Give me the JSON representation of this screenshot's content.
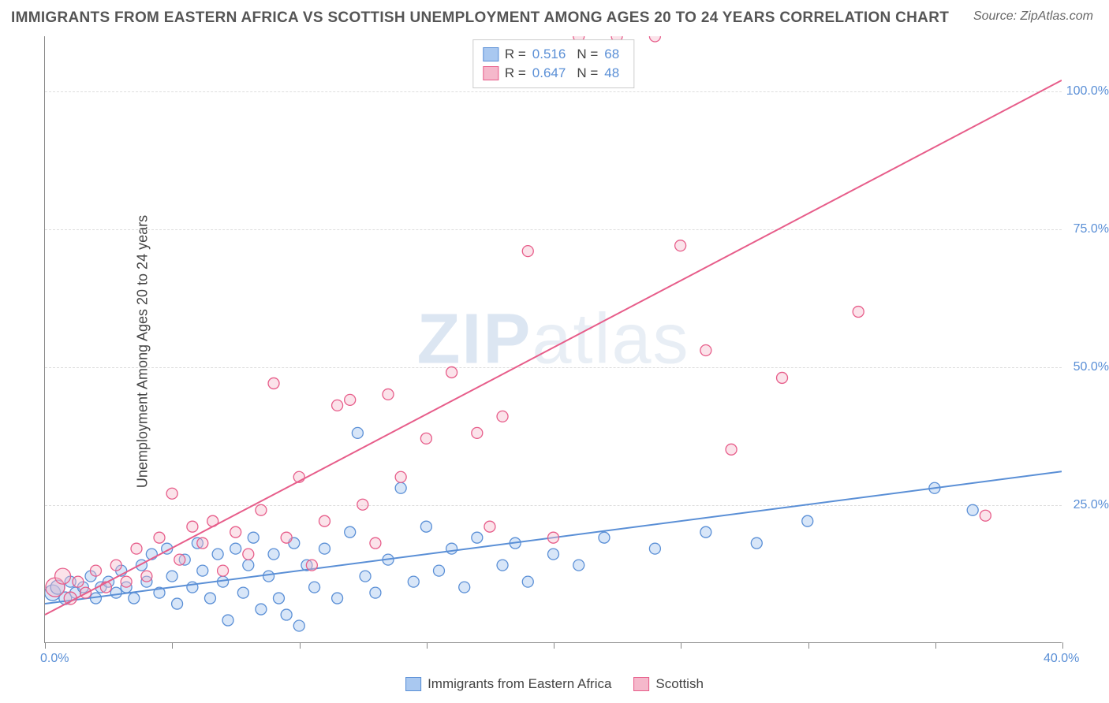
{
  "title": "IMMIGRANTS FROM EASTERN AFRICA VS SCOTTISH UNEMPLOYMENT AMONG AGES 20 TO 24 YEARS CORRELATION CHART",
  "source": "Source: ZipAtlas.com",
  "watermark_a": "ZIP",
  "watermark_b": "atlas",
  "y_axis_label": "Unemployment Among Ages 20 to 24 years",
  "chart": {
    "type": "scatter",
    "xlim": [
      0,
      40
    ],
    "ylim": [
      0,
      110
    ],
    "x_ticks": [
      0,
      5,
      10,
      15,
      20,
      25,
      30,
      35,
      40
    ],
    "x_tick_labels": {
      "0": "0.0%",
      "40": "40.0%"
    },
    "y_gridlines": [
      25,
      50,
      75,
      100
    ],
    "y_tick_labels": {
      "25": "25.0%",
      "50": "50.0%",
      "75": "75.0%",
      "100": "100.0%"
    },
    "background_color": "#ffffff",
    "grid_color": "#dddddd",
    "axis_color": "#888888",
    "marker_radius": 7,
    "marker_stroke_width": 1.3,
    "trend_line_width": 2
  },
  "series": [
    {
      "name": "Immigrants from Eastern Africa",
      "color_fill": "#a9c8f0",
      "color_stroke": "#5a8fd6",
      "fill_opacity": 0.45,
      "R": "0.516",
      "N": "68",
      "trend": {
        "x1": 0,
        "y1": 7,
        "x2": 40,
        "y2": 31
      },
      "points": [
        {
          "x": 0.3,
          "y": 9,
          "r": 10
        },
        {
          "x": 0.5,
          "y": 10,
          "r": 9
        },
        {
          "x": 0.8,
          "y": 8,
          "r": 8
        },
        {
          "x": 1.0,
          "y": 11,
          "r": 7
        },
        {
          "x": 1.2,
          "y": 9,
          "r": 7
        },
        {
          "x": 1.5,
          "y": 10,
          "r": 7
        },
        {
          "x": 1.8,
          "y": 12,
          "r": 7
        },
        {
          "x": 2.0,
          "y": 8,
          "r": 7
        },
        {
          "x": 2.2,
          "y": 10,
          "r": 7
        },
        {
          "x": 2.5,
          "y": 11,
          "r": 7
        },
        {
          "x": 2.8,
          "y": 9,
          "r": 7
        },
        {
          "x": 3.0,
          "y": 13,
          "r": 7
        },
        {
          "x": 3.2,
          "y": 10,
          "r": 7
        },
        {
          "x": 3.5,
          "y": 8,
          "r": 7
        },
        {
          "x": 3.8,
          "y": 14,
          "r": 7
        },
        {
          "x": 4.0,
          "y": 11,
          "r": 7
        },
        {
          "x": 4.2,
          "y": 16,
          "r": 7
        },
        {
          "x": 4.5,
          "y": 9,
          "r": 7
        },
        {
          "x": 4.8,
          "y": 17,
          "r": 7
        },
        {
          "x": 5.0,
          "y": 12,
          "r": 7
        },
        {
          "x": 5.2,
          "y": 7,
          "r": 7
        },
        {
          "x": 5.5,
          "y": 15,
          "r": 7
        },
        {
          "x": 5.8,
          "y": 10,
          "r": 7
        },
        {
          "x": 6.0,
          "y": 18,
          "r": 7
        },
        {
          "x": 6.2,
          "y": 13,
          "r": 7
        },
        {
          "x": 6.5,
          "y": 8,
          "r": 7
        },
        {
          "x": 6.8,
          "y": 16,
          "r": 7
        },
        {
          "x": 7.0,
          "y": 11,
          "r": 7
        },
        {
          "x": 7.2,
          "y": 4,
          "r": 7
        },
        {
          "x": 7.5,
          "y": 17,
          "r": 7
        },
        {
          "x": 7.8,
          "y": 9,
          "r": 7
        },
        {
          "x": 8.0,
          "y": 14,
          "r": 7
        },
        {
          "x": 8.2,
          "y": 19,
          "r": 7
        },
        {
          "x": 8.5,
          "y": 6,
          "r": 7
        },
        {
          "x": 8.8,
          "y": 12,
          "r": 7
        },
        {
          "x": 9.0,
          "y": 16,
          "r": 7
        },
        {
          "x": 9.2,
          "y": 8,
          "r": 7
        },
        {
          "x": 9.5,
          "y": 5,
          "r": 7
        },
        {
          "x": 9.8,
          "y": 18,
          "r": 7
        },
        {
          "x": 10.0,
          "y": 3,
          "r": 7
        },
        {
          "x": 10.3,
          "y": 14,
          "r": 7
        },
        {
          "x": 10.6,
          "y": 10,
          "r": 7
        },
        {
          "x": 11.0,
          "y": 17,
          "r": 7
        },
        {
          "x": 11.5,
          "y": 8,
          "r": 7
        },
        {
          "x": 12.0,
          "y": 20,
          "r": 7
        },
        {
          "x": 12.3,
          "y": 38,
          "r": 7
        },
        {
          "x": 12.6,
          "y": 12,
          "r": 7
        },
        {
          "x": 13.0,
          "y": 9,
          "r": 7
        },
        {
          "x": 13.5,
          "y": 15,
          "r": 7
        },
        {
          "x": 14.0,
          "y": 28,
          "r": 7
        },
        {
          "x": 14.5,
          "y": 11,
          "r": 7
        },
        {
          "x": 15.0,
          "y": 21,
          "r": 7
        },
        {
          "x": 15.5,
          "y": 13,
          "r": 7
        },
        {
          "x": 16.0,
          "y": 17,
          "r": 7
        },
        {
          "x": 16.5,
          "y": 10,
          "r": 7
        },
        {
          "x": 17.0,
          "y": 19,
          "r": 7
        },
        {
          "x": 18.0,
          "y": 14,
          "r": 7
        },
        {
          "x": 18.5,
          "y": 18,
          "r": 7
        },
        {
          "x": 19.0,
          "y": 11,
          "r": 7
        },
        {
          "x": 20.0,
          "y": 16,
          "r": 7
        },
        {
          "x": 21.0,
          "y": 14,
          "r": 7
        },
        {
          "x": 22.0,
          "y": 19,
          "r": 7
        },
        {
          "x": 24.0,
          "y": 17,
          "r": 7
        },
        {
          "x": 26.0,
          "y": 20,
          "r": 7
        },
        {
          "x": 28.0,
          "y": 18,
          "r": 7
        },
        {
          "x": 30.0,
          "y": 22,
          "r": 7
        },
        {
          "x": 35.0,
          "y": 28,
          "r": 7
        },
        {
          "x": 36.5,
          "y": 24,
          "r": 7
        }
      ]
    },
    {
      "name": "Scottish",
      "color_fill": "#f5b8cb",
      "color_stroke": "#e75d8a",
      "fill_opacity": 0.4,
      "R": "0.647",
      "N": "48",
      "trend": {
        "x1": 0,
        "y1": 5,
        "x2": 40,
        "y2": 102
      },
      "points": [
        {
          "x": 0.4,
          "y": 10,
          "r": 12
        },
        {
          "x": 0.7,
          "y": 12,
          "r": 10
        },
        {
          "x": 1.0,
          "y": 8,
          "r": 8
        },
        {
          "x": 1.3,
          "y": 11,
          "r": 7
        },
        {
          "x": 1.6,
          "y": 9,
          "r": 7
        },
        {
          "x": 2.0,
          "y": 13,
          "r": 7
        },
        {
          "x": 2.4,
          "y": 10,
          "r": 7
        },
        {
          "x": 2.8,
          "y": 14,
          "r": 7
        },
        {
          "x": 3.2,
          "y": 11,
          "r": 7
        },
        {
          "x": 3.6,
          "y": 17,
          "r": 7
        },
        {
          "x": 4.0,
          "y": 12,
          "r": 7
        },
        {
          "x": 4.5,
          "y": 19,
          "r": 7
        },
        {
          "x": 5.0,
          "y": 27,
          "r": 7
        },
        {
          "x": 5.3,
          "y": 15,
          "r": 7
        },
        {
          "x": 5.8,
          "y": 21,
          "r": 7
        },
        {
          "x": 6.2,
          "y": 18,
          "r": 7
        },
        {
          "x": 6.6,
          "y": 22,
          "r": 7
        },
        {
          "x": 7.0,
          "y": 13,
          "r": 7
        },
        {
          "x": 7.5,
          "y": 20,
          "r": 7
        },
        {
          "x": 8.0,
          "y": 16,
          "r": 7
        },
        {
          "x": 8.5,
          "y": 24,
          "r": 7
        },
        {
          "x": 9.0,
          "y": 47,
          "r": 7
        },
        {
          "x": 9.5,
          "y": 19,
          "r": 7
        },
        {
          "x": 10.0,
          "y": 30,
          "r": 7
        },
        {
          "x": 10.5,
          "y": 14,
          "r": 7
        },
        {
          "x": 11.0,
          "y": 22,
          "r": 7
        },
        {
          "x": 11.5,
          "y": 43,
          "r": 7
        },
        {
          "x": 12.0,
          "y": 44,
          "r": 7
        },
        {
          "x": 12.5,
          "y": 25,
          "r": 7
        },
        {
          "x": 13.0,
          "y": 18,
          "r": 7
        },
        {
          "x": 13.5,
          "y": 45,
          "r": 7
        },
        {
          "x": 14.0,
          "y": 30,
          "r": 7
        },
        {
          "x": 15.0,
          "y": 37,
          "r": 7
        },
        {
          "x": 16.0,
          "y": 49,
          "r": 7
        },
        {
          "x": 17.0,
          "y": 38,
          "r": 7
        },
        {
          "x": 17.5,
          "y": 21,
          "r": 7
        },
        {
          "x": 18.0,
          "y": 41,
          "r": 7
        },
        {
          "x": 19.0,
          "y": 71,
          "r": 7
        },
        {
          "x": 20.0,
          "y": 19,
          "r": 7
        },
        {
          "x": 21.0,
          "y": 110,
          "r": 7
        },
        {
          "x": 22.5,
          "y": 110,
          "r": 7
        },
        {
          "x": 24.0,
          "y": 110,
          "r": 7
        },
        {
          "x": 25.0,
          "y": 72,
          "r": 7
        },
        {
          "x": 26.0,
          "y": 53,
          "r": 7
        },
        {
          "x": 27.0,
          "y": 35,
          "r": 7
        },
        {
          "x": 29.0,
          "y": 48,
          "r": 7
        },
        {
          "x": 32.0,
          "y": 60,
          "r": 7
        },
        {
          "x": 37.0,
          "y": 23,
          "r": 7
        }
      ]
    }
  ],
  "legend_bottom": [
    {
      "label": "Immigrants from Eastern Africa",
      "fill": "#a9c8f0",
      "stroke": "#5a8fd6"
    },
    {
      "label": "Scottish",
      "fill": "#f5b8cb",
      "stroke": "#e75d8a"
    }
  ],
  "legend_top_label_R": "R =",
  "legend_top_label_N": "N ="
}
